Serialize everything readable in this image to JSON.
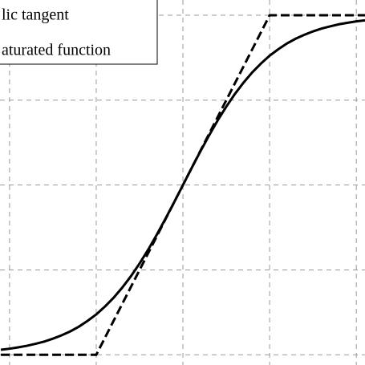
{
  "chart_data": {
    "type": "line",
    "x": [
      -2.1,
      -2.0,
      -1.9,
      -1.8,
      -1.7,
      -1.6,
      -1.5,
      -1.4,
      -1.3,
      -1.2,
      -1.1,
      -1.0,
      -0.9,
      -0.8,
      -0.7,
      -0.6,
      -0.5,
      -0.4,
      -0.3,
      -0.2,
      -0.1,
      0,
      0.1,
      0.2,
      0.3,
      0.4,
      0.5,
      0.6,
      0.7,
      0.8,
      0.9,
      1.0,
      1.1,
      1.2,
      1.3,
      1.4,
      1.5,
      1.6,
      1.7,
      1.8,
      1.9,
      2.0,
      2.1
    ],
    "series": [
      {
        "name": "lic tangent",
        "color": "#000000",
        "dash": false,
        "values": [
          -0.97,
          -0.964,
          -0.956,
          -0.947,
          -0.935,
          -0.922,
          -0.905,
          -0.885,
          -0.862,
          -0.834,
          -0.8,
          -0.762,
          -0.716,
          -0.664,
          -0.604,
          -0.537,
          -0.462,
          -0.38,
          -0.291,
          -0.197,
          -0.1,
          0,
          0.1,
          0.197,
          0.291,
          0.38,
          0.462,
          0.537,
          0.604,
          0.664,
          0.716,
          0.762,
          0.8,
          0.834,
          0.862,
          0.885,
          0.905,
          0.922,
          0.935,
          0.947,
          0.956,
          0.964,
          0.97
        ]
      },
      {
        "name": "aturated function",
        "color": "#000000",
        "dash": true,
        "values": [
          -1,
          -1,
          -1,
          -1,
          -1,
          -1,
          -1,
          -1,
          -1,
          -1,
          -1,
          -1,
          -0.9,
          -0.8,
          -0.7,
          -0.6,
          -0.5,
          -0.4,
          -0.3,
          -0.2,
          -0.1,
          0,
          0.1,
          0.2,
          0.3,
          0.4,
          0.5,
          0.6,
          0.7,
          0.8,
          0.9,
          1,
          1,
          1,
          1,
          1,
          1,
          1,
          1,
          1,
          1,
          1,
          1
        ]
      }
    ],
    "xlim": [
      -2.11,
      2.1
    ],
    "ylim": [
      -1.06,
      1.09
    ],
    "xticks": [
      -2,
      -1,
      0,
      1,
      2
    ],
    "yticks": [
      -1,
      -0.5,
      0,
      0.5,
      1
    ],
    "grid": true
  }
}
